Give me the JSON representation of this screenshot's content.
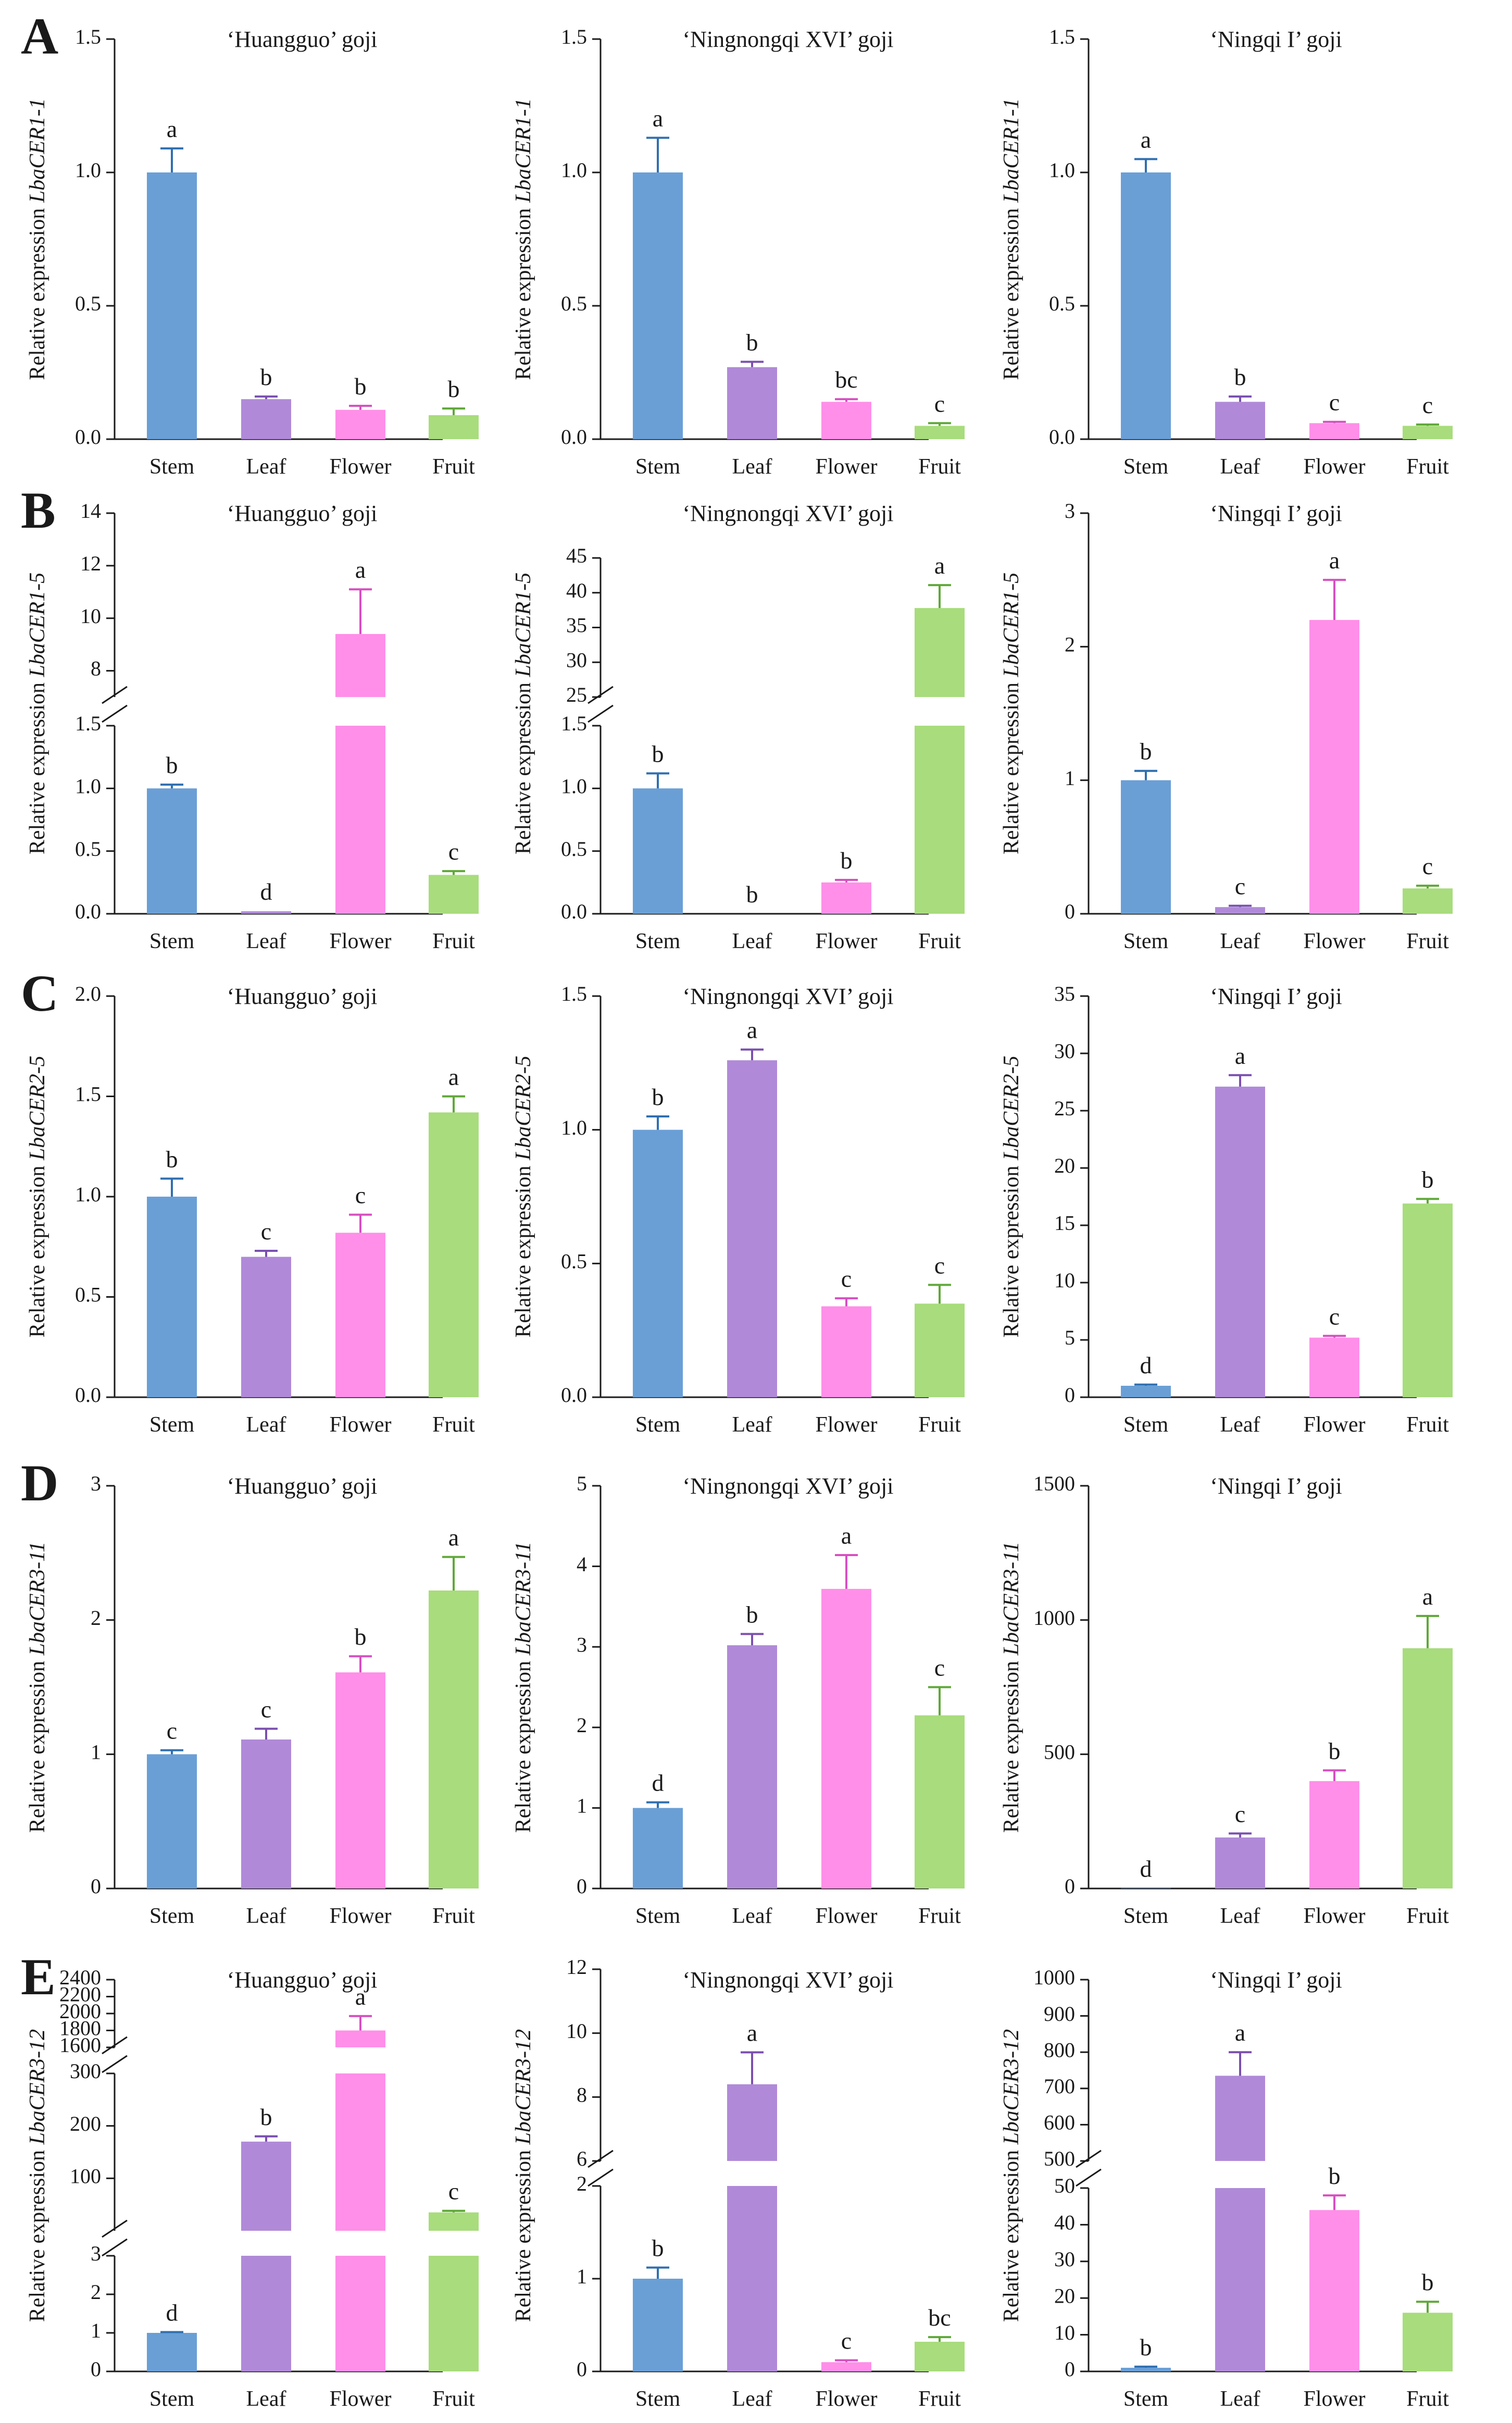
{
  "figure": {
    "colors": {
      "Stem": "#6a9fd6",
      "Leaf": "#b08ad8",
      "Flower": "#ff8fe8",
      "Fruit": "#a8dc7c"
    },
    "error_colors": {
      "Stem": "#2f6fb0",
      "Leaf": "#7a4fb0",
      "Flower": "#d84fc0",
      "Fruit": "#5fa838"
    }
  },
  "chart_data": [
    {
      "id": "A1",
      "panel_label": "A",
      "type": "bar",
      "title": "‘Huangguo’ goji",
      "ylabel_prefix": "Relative expression ",
      "gene": "LbaCER1-1",
      "categories": [
        "Stem",
        "Leaf",
        "Flower",
        "Fruit"
      ],
      "values": [
        1.0,
        0.15,
        0.11,
        0.09
      ],
      "errors": [
        0.09,
        0.01,
        0.015,
        0.025
      ],
      "letters": [
        "a",
        "b",
        "b",
        "b"
      ],
      "ylim": [
        0,
        1.5
      ],
      "ticks": [
        0,
        0.5,
        1,
        1.5
      ],
      "tick_labels": [
        "0.0",
        "0.5",
        "1.0",
        "1.5"
      ]
    },
    {
      "id": "A2",
      "type": "bar",
      "title": "‘Ningnongqi XVI’ goji",
      "ylabel_prefix": "Relative expression ",
      "gene": "LbaCER1-1",
      "categories": [
        "Stem",
        "Leaf",
        "Flower",
        "Fruit"
      ],
      "values": [
        1.0,
        0.27,
        0.14,
        0.05
      ],
      "errors": [
        0.13,
        0.02,
        0.01,
        0.01
      ],
      "letters": [
        "a",
        "b",
        "bc",
        "c"
      ],
      "ylim": [
        0,
        1.5
      ],
      "ticks": [
        0,
        0.5,
        1,
        1.5
      ],
      "tick_labels": [
        "0.0",
        "0.5",
        "1.0",
        "1.5"
      ]
    },
    {
      "id": "A3",
      "type": "bar",
      "title": "‘Ningqi I’ goji",
      "ylabel_prefix": "Relative expression ",
      "gene": "LbaCER1-1",
      "categories": [
        "Stem",
        "Leaf",
        "Flower",
        "Fruit"
      ],
      "values": [
        1.0,
        0.14,
        0.06,
        0.05
      ],
      "errors": [
        0.05,
        0.02,
        0.005,
        0.005
      ],
      "letters": [
        "a",
        "b",
        "c",
        "c"
      ],
      "ylim": [
        0,
        1.5
      ],
      "ticks": [
        0,
        0.5,
        1,
        1.5
      ],
      "tick_labels": [
        "0.0",
        "0.5",
        "1.0",
        "1.5"
      ]
    },
    {
      "id": "B1",
      "panel_label": "B",
      "type": "bar",
      "title": "‘Huangguo’ goji",
      "ylabel_prefix": "Relative expression ",
      "gene": "LbaCER1-5",
      "categories": [
        "Stem",
        "Leaf",
        "Flower",
        "Fruit"
      ],
      "values": [
        1.0,
        0.02,
        9.4,
        0.31
      ],
      "errors": [
        0.03,
        0.0,
        1.7,
        0.03
      ],
      "letters": [
        "b",
        "d",
        "a",
        "c"
      ],
      "segments": [
        {
          "range": [
            0,
            1.5
          ],
          "ticks": [
            0,
            0.5,
            1,
            1.5
          ],
          "tick_labels": [
            "0.0",
            "0.5",
            "1.0",
            "1.5"
          ]
        },
        {
          "range": [
            7,
            14
          ],
          "ticks": [
            8,
            10,
            12,
            14
          ],
          "tick_labels": [
            "8",
            "10",
            "12",
            "14"
          ]
        }
      ]
    },
    {
      "id": "B2",
      "type": "bar",
      "title": "‘Ningnongqi XVI’ goji",
      "ylabel_prefix": "Relative expression ",
      "gene": "LbaCER1-5",
      "categories": [
        "Stem",
        "Leaf",
        "Flower",
        "Fruit"
      ],
      "values": [
        1.0,
        0.0,
        0.25,
        37.8
      ],
      "errors": [
        0.12,
        0.0,
        0.02,
        3.3
      ],
      "letters": [
        "b",
        "b",
        "b",
        "a"
      ],
      "segments": [
        {
          "range": [
            0,
            1.5
          ],
          "ticks": [
            0,
            0.5,
            1,
            1.5
          ],
          "tick_labels": [
            "0.0",
            "0.5",
            "1.0",
            "1.5"
          ]
        },
        {
          "range": [
            25,
            45
          ],
          "ticks": [
            25,
            30,
            35,
            40,
            45
          ],
          "tick_labels": [
            "25",
            "30",
            "35",
            "40",
            "45"
          ]
        }
      ]
    },
    {
      "id": "B3",
      "type": "bar",
      "title": "‘Ningqi I’ goji",
      "ylabel_prefix": "Relative expression ",
      "gene": "LbaCER1-5",
      "categories": [
        "Stem",
        "Leaf",
        "Flower",
        "Fruit"
      ],
      "values": [
        1.0,
        0.05,
        2.2,
        0.19
      ],
      "errors": [
        0.07,
        0.01,
        0.3,
        0.02
      ],
      "letters": [
        "b",
        "c",
        "a",
        "c"
      ],
      "ylim": [
        0,
        3
      ],
      "ticks": [
        0,
        1,
        2,
        3
      ],
      "tick_labels": [
        "0",
        "1",
        "2",
        "3"
      ]
    },
    {
      "id": "C1",
      "panel_label": "C",
      "type": "bar",
      "title": "‘Huangguo’ goji",
      "ylabel_prefix": "Relative expression ",
      "gene": "LbaCER2-5",
      "categories": [
        "Stem",
        "Leaf",
        "Flower",
        "Fruit"
      ],
      "values": [
        1.0,
        0.7,
        0.82,
        1.42
      ],
      "errors": [
        0.09,
        0.03,
        0.09,
        0.08
      ],
      "letters": [
        "b",
        "c",
        "c",
        "a"
      ],
      "ylim": [
        0,
        2
      ],
      "ticks": [
        0,
        0.5,
        1,
        1.5,
        2
      ],
      "tick_labels": [
        "0.0",
        "0.5",
        "1.0",
        "1.5",
        "2.0"
      ]
    },
    {
      "id": "C2",
      "type": "bar",
      "title": "‘Ningnongqi XVI’ goji",
      "ylabel_prefix": "Relative expression ",
      "gene": "LbaCER2-5",
      "categories": [
        "Stem",
        "Leaf",
        "Flower",
        "Fruit"
      ],
      "values": [
        1.0,
        1.26,
        0.34,
        0.35
      ],
      "errors": [
        0.05,
        0.04,
        0.03,
        0.07
      ],
      "letters": [
        "b",
        "a",
        "c",
        "c"
      ],
      "ylim": [
        0,
        1.5
      ],
      "ticks": [
        0,
        0.5,
        1,
        1.5
      ],
      "tick_labels": [
        "0.0",
        "0.5",
        "1.0",
        "1.5"
      ]
    },
    {
      "id": "C3",
      "type": "bar",
      "title": "‘Ningqi I’ goji",
      "ylabel_prefix": "Relative expression ",
      "gene": "LbaCER2-5",
      "categories": [
        "Stem",
        "Leaf",
        "Flower",
        "Fruit"
      ],
      "values": [
        1.0,
        27.1,
        5.2,
        16.9
      ],
      "errors": [
        0.1,
        1.0,
        0.15,
        0.4
      ],
      "letters": [
        "d",
        "a",
        "c",
        "b"
      ],
      "ylim": [
        0,
        35
      ],
      "ticks": [
        0,
        5,
        10,
        15,
        20,
        25,
        30,
        35
      ],
      "tick_labels": [
        "0",
        "5",
        "10",
        "15",
        "20",
        "25",
        "30",
        "35"
      ]
    },
    {
      "id": "D1",
      "panel_label": "D",
      "type": "bar",
      "title": "‘Huangguo’ goji",
      "ylabel_prefix": "Relative expression ",
      "gene": "LbaCER3-11",
      "categories": [
        "Stem",
        "Leaf",
        "Flower",
        "Fruit"
      ],
      "values": [
        1.0,
        1.11,
        1.61,
        2.22
      ],
      "errors": [
        0.03,
        0.08,
        0.12,
        0.25
      ],
      "letters": [
        "c",
        "c",
        "b",
        "a"
      ],
      "ylim": [
        0,
        3
      ],
      "ticks": [
        0,
        1,
        2,
        3
      ],
      "tick_labels": [
        "0",
        "1",
        "2",
        "3"
      ]
    },
    {
      "id": "D2",
      "type": "bar",
      "title": "‘Ningnongqi XVI’ goji",
      "ylabel_prefix": "Relative expression ",
      "gene": "LbaCER3-11",
      "categories": [
        "Stem",
        "Leaf",
        "Flower",
        "Fruit"
      ],
      "values": [
        1.0,
        3.02,
        3.72,
        2.15
      ],
      "errors": [
        0.07,
        0.14,
        0.42,
        0.35
      ],
      "letters": [
        "d",
        "b",
        "a",
        "c"
      ],
      "ylim": [
        0,
        5
      ],
      "ticks": [
        0,
        1,
        2,
        3,
        4,
        5
      ],
      "tick_labels": [
        "0",
        "1",
        "2",
        "3",
        "4",
        "5"
      ]
    },
    {
      "id": "D3",
      "type": "bar",
      "title": "‘Ningqi I’ goji",
      "ylabel_prefix": "Relative expression ",
      "gene": "LbaCER3-11",
      "categories": [
        "Stem",
        "Leaf",
        "Flower",
        "Fruit"
      ],
      "values": [
        1.0,
        190,
        400,
        895
      ],
      "errors": [
        0.0,
        15,
        40,
        120
      ],
      "letters": [
        "d",
        "c",
        "b",
        "a"
      ],
      "ylim": [
        0,
        1500
      ],
      "ticks": [
        0,
        500,
        1000,
        1500
      ],
      "tick_labels": [
        "0",
        "500",
        "1000",
        "1500"
      ]
    },
    {
      "id": "E1",
      "panel_label": "E",
      "type": "bar",
      "title": "‘Huangguo’ goji",
      "ylabel_prefix": "Relative expression ",
      "gene": "LbaCER3-12",
      "categories": [
        "Stem",
        "Leaf",
        "Flower",
        "Fruit"
      ],
      "values": [
        1.0,
        170,
        1800,
        35
      ],
      "errors": [
        0.02,
        10,
        170,
        3
      ],
      "letters": [
        "d",
        "b",
        "a",
        "c"
      ],
      "segments": [
        {
          "range": [
            0,
            3
          ],
          "ticks": [
            0,
            1,
            2,
            3
          ],
          "tick_labels": [
            "0",
            "1",
            "2",
            "3"
          ]
        },
        {
          "range": [
            0,
            300
          ],
          "ticks": [
            100,
            200,
            300
          ],
          "tick_labels": [
            "100",
            "200",
            "300"
          ]
        },
        {
          "range": [
            1600,
            2400
          ],
          "ticks": [
            1600,
            1800,
            2000,
            2200,
            2400
          ],
          "tick_labels": [
            "1600",
            "1800",
            "2000",
            "2200",
            "2400"
          ]
        }
      ]
    },
    {
      "id": "E2",
      "type": "bar",
      "title": "‘Ningnongqi XVI’ goji",
      "ylabel_prefix": "Relative expression ",
      "gene": "LbaCER3-12",
      "categories": [
        "Stem",
        "Leaf",
        "Flower",
        "Fruit"
      ],
      "values": [
        1.0,
        8.4,
        0.1,
        0.32
      ],
      "errors": [
        0.12,
        1.0,
        0.02,
        0.05
      ],
      "letters": [
        "b",
        "a",
        "c",
        "bc"
      ],
      "segments": [
        {
          "range": [
            0,
            2
          ],
          "ticks": [
            0,
            1,
            2
          ],
          "tick_labels": [
            "0",
            "1",
            "2"
          ]
        },
        {
          "range": [
            6,
            12
          ],
          "ticks": [
            6,
            8,
            10,
            12
          ],
          "tick_labels": [
            "6",
            "8",
            "10",
            "12"
          ]
        }
      ]
    },
    {
      "id": "E3",
      "type": "bar",
      "title": "‘Ningqi I’ goji",
      "ylabel_prefix": "Relative expression ",
      "gene": "LbaCER3-12",
      "categories": [
        "Stem",
        "Leaf",
        "Flower",
        "Fruit"
      ],
      "values": [
        1.0,
        735,
        44,
        16
      ],
      "errors": [
        0.3,
        65,
        4,
        3
      ],
      "letters": [
        "b",
        "a",
        "b",
        "b"
      ],
      "segments": [
        {
          "range": [
            0,
            50
          ],
          "ticks": [
            0,
            10,
            20,
            30,
            40,
            50
          ],
          "tick_labels": [
            "0",
            "10",
            "20",
            "30",
            "40",
            "50"
          ]
        },
        {
          "range": [
            500,
            1000
          ],
          "ticks": [
            500,
            600,
            700,
            800,
            900,
            1000
          ],
          "tick_labels": [
            "500",
            "600",
            "700",
            "800",
            "900",
            "1000"
          ]
        }
      ]
    }
  ]
}
